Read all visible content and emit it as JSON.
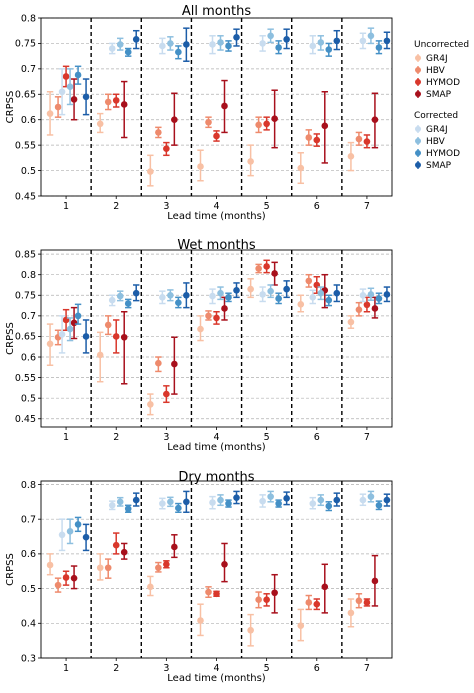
{
  "legend": {
    "group_uncorrected": "Uncorrected",
    "group_corrected": "Corrected",
    "models": [
      "GR4J",
      "HBV",
      "HYMOD",
      "SMAP"
    ],
    "colors_uncorrected": [
      "#f8c0a4",
      "#ee8a6c",
      "#d9372b",
      "#a8101c"
    ],
    "colors_corrected": [
      "#c8dcef",
      "#8dbfdf",
      "#4490c6",
      "#1c5da8"
    ]
  },
  "chart_data": [
    {
      "type": "scatter",
      "title": "All months",
      "xlabel": "Lead time (months)",
      "ylabel": "CRPSS",
      "categories": [
        "1",
        "2",
        "3",
        "4",
        "5",
        "6",
        "7"
      ],
      "ylim": [
        0.45,
        0.8
      ],
      "yticks": [
        0.45,
        0.5,
        0.55,
        0.6,
        0.65,
        0.7,
        0.75,
        0.8
      ],
      "grid": "y-dashed",
      "series": [
        {
          "name": "GR4J",
          "group": "Uncorrected",
          "values": [
            0.612,
            0.592,
            0.498,
            0.508,
            0.518,
            0.505,
            0.528
          ],
          "lower": [
            0.57,
            0.575,
            0.47,
            0.48,
            0.49,
            0.475,
            0.5
          ],
          "upper": [
            0.655,
            0.612,
            0.53,
            0.54,
            0.55,
            0.535,
            0.555
          ]
        },
        {
          "name": "HBV",
          "group": "Uncorrected",
          "values": [
            0.625,
            0.635,
            0.575,
            0.595,
            0.59,
            0.565,
            0.562
          ],
          "lower": [
            0.605,
            0.62,
            0.565,
            0.585,
            0.575,
            0.55,
            0.55
          ],
          "upper": [
            0.645,
            0.65,
            0.585,
            0.605,
            0.605,
            0.58,
            0.575
          ]
        },
        {
          "name": "HYMOD",
          "group": "Uncorrected",
          "values": [
            0.685,
            0.638,
            0.543,
            0.568,
            0.592,
            0.56,
            0.557
          ],
          "lower": [
            0.665,
            0.625,
            0.53,
            0.558,
            0.58,
            0.548,
            0.545
          ],
          "upper": [
            0.705,
            0.65,
            0.555,
            0.578,
            0.605,
            0.572,
            0.57
          ]
        },
        {
          "name": "SMAP",
          "group": "Uncorrected",
          "values": [
            0.64,
            0.63,
            0.6,
            0.627,
            0.602,
            0.588,
            0.6
          ],
          "lower": [
            0.6,
            0.565,
            0.55,
            0.575,
            0.545,
            0.515,
            0.545
          ],
          "upper": [
            0.68,
            0.675,
            0.652,
            0.677,
            0.658,
            0.655,
            0.652
          ]
        },
        {
          "name": "GR4J",
          "group": "Corrected",
          "values": [
            0.655,
            0.74,
            0.745,
            0.748,
            0.75,
            0.745,
            0.755
          ],
          "lower": [
            0.61,
            0.73,
            0.73,
            0.73,
            0.735,
            0.73,
            0.74
          ],
          "upper": [
            0.7,
            0.75,
            0.76,
            0.765,
            0.765,
            0.765,
            0.77
          ]
        },
        {
          "name": "HBV",
          "group": "Corrected",
          "values": [
            0.665,
            0.748,
            0.75,
            0.752,
            0.765,
            0.752,
            0.765
          ],
          "lower": [
            0.63,
            0.737,
            0.737,
            0.737,
            0.752,
            0.737,
            0.75
          ],
          "upper": [
            0.7,
            0.76,
            0.763,
            0.765,
            0.778,
            0.765,
            0.78
          ]
        },
        {
          "name": "HYMOD",
          "group": "Corrected",
          "values": [
            0.688,
            0.733,
            0.733,
            0.745,
            0.742,
            0.738,
            0.742
          ],
          "lower": [
            0.67,
            0.725,
            0.72,
            0.735,
            0.73,
            0.725,
            0.73
          ],
          "upper": [
            0.705,
            0.74,
            0.745,
            0.755,
            0.755,
            0.75,
            0.755
          ]
        },
        {
          "name": "SMAP",
          "group": "Corrected",
          "values": [
            0.645,
            0.758,
            0.748,
            0.762,
            0.758,
            0.755,
            0.755
          ],
          "lower": [
            0.61,
            0.74,
            0.715,
            0.745,
            0.74,
            0.738,
            0.74
          ],
          "upper": [
            0.68,
            0.775,
            0.78,
            0.778,
            0.778,
            0.775,
            0.772
          ]
        }
      ]
    },
    {
      "type": "scatter",
      "title": "Wet months",
      "xlabel": "Lead time (months)",
      "ylabel": "CRPSS",
      "categories": [
        "1",
        "2",
        "3",
        "4",
        "5",
        "6",
        "7"
      ],
      "ylim": [
        0.43,
        0.86
      ],
      "yticks": [
        0.45,
        0.5,
        0.55,
        0.6,
        0.65,
        0.7,
        0.75,
        0.8,
        0.85
      ],
      "grid": "y-dashed",
      "series": [
        {
          "name": "GR4J",
          "group": "Uncorrected",
          "values": [
            0.632,
            0.605,
            0.485,
            0.668,
            0.765,
            0.728,
            0.685
          ],
          "lower": [
            0.58,
            0.54,
            0.46,
            0.64,
            0.745,
            0.71,
            0.67
          ],
          "upper": [
            0.68,
            0.66,
            0.51,
            0.7,
            0.79,
            0.75,
            0.7
          ]
        },
        {
          "name": "HBV",
          "group": "Uncorrected",
          "values": [
            0.648,
            0.678,
            0.585,
            0.7,
            0.815,
            0.785,
            0.715
          ],
          "lower": [
            0.63,
            0.655,
            0.565,
            0.69,
            0.805,
            0.77,
            0.7
          ],
          "upper": [
            0.665,
            0.7,
            0.6,
            0.712,
            0.825,
            0.8,
            0.732
          ]
        },
        {
          "name": "HYMOD",
          "group": "Uncorrected",
          "values": [
            0.69,
            0.65,
            0.51,
            0.695,
            0.82,
            0.775,
            0.727
          ],
          "lower": [
            0.665,
            0.61,
            0.49,
            0.68,
            0.805,
            0.755,
            0.71
          ],
          "upper": [
            0.715,
            0.69,
            0.53,
            0.71,
            0.835,
            0.795,
            0.745
          ]
        },
        {
          "name": "SMAP",
          "group": "Uncorrected",
          "values": [
            0.683,
            0.648,
            0.583,
            0.718,
            0.803,
            0.762,
            0.718
          ],
          "lower": [
            0.645,
            0.535,
            0.51,
            0.69,
            0.775,
            0.72,
            0.695
          ],
          "upper": [
            0.72,
            0.71,
            0.648,
            0.745,
            0.83,
            0.8,
            0.745
          ]
        },
        {
          "name": "GR4J",
          "group": "Corrected",
          "values": [
            0.655,
            0.738,
            0.745,
            0.748,
            0.752,
            0.745,
            0.75
          ],
          "lower": [
            0.61,
            0.725,
            0.73,
            0.73,
            0.735,
            0.73,
            0.735
          ],
          "upper": [
            0.7,
            0.75,
            0.76,
            0.765,
            0.77,
            0.762,
            0.765
          ]
        },
        {
          "name": "HBV",
          "group": "Corrected",
          "values": [
            0.668,
            0.748,
            0.75,
            0.755,
            0.76,
            0.755,
            0.752
          ],
          "lower": [
            0.64,
            0.737,
            0.737,
            0.74,
            0.745,
            0.74,
            0.738
          ],
          "upper": [
            0.695,
            0.76,
            0.763,
            0.77,
            0.775,
            0.77,
            0.767
          ]
        },
        {
          "name": "HYMOD",
          "group": "Corrected",
          "values": [
            0.7,
            0.73,
            0.732,
            0.745,
            0.742,
            0.738,
            0.742
          ],
          "lower": [
            0.68,
            0.72,
            0.72,
            0.735,
            0.73,
            0.725,
            0.73
          ],
          "upper": [
            0.728,
            0.74,
            0.745,
            0.755,
            0.755,
            0.75,
            0.755
          ]
        },
        {
          "name": "SMAP",
          "group": "Corrected",
          "values": [
            0.65,
            0.755,
            0.75,
            0.762,
            0.765,
            0.755,
            0.752
          ],
          "lower": [
            0.61,
            0.737,
            0.72,
            0.745,
            0.745,
            0.735,
            0.735
          ],
          "upper": [
            0.69,
            0.775,
            0.78,
            0.78,
            0.785,
            0.775,
            0.77
          ]
        }
      ]
    },
    {
      "type": "scatter",
      "title": "Dry months",
      "xlabel": "Lead time (months)",
      "ylabel": "CRPSS",
      "categories": [
        "1",
        "2",
        "3",
        "4",
        "5",
        "6",
        "7"
      ],
      "ylim": [
        0.3,
        0.81
      ],
      "yticks": [
        0.3,
        0.4,
        0.5,
        0.6,
        0.7,
        0.8
      ],
      "grid": "y-dashed",
      "series": [
        {
          "name": "GR4J",
          "group": "Uncorrected",
          "values": [
            0.568,
            0.56,
            0.505,
            0.408,
            0.38,
            0.393,
            0.43
          ],
          "lower": [
            0.54,
            0.525,
            0.48,
            0.365,
            0.335,
            0.35,
            0.39
          ],
          "upper": [
            0.6,
            0.6,
            0.535,
            0.455,
            0.425,
            0.44,
            0.47
          ]
        },
        {
          "name": "HBV",
          "group": "Uncorrected",
          "values": [
            0.51,
            0.56,
            0.56,
            0.49,
            0.468,
            0.46,
            0.465
          ],
          "lower": [
            0.49,
            0.53,
            0.548,
            0.475,
            0.445,
            0.44,
            0.445
          ],
          "upper": [
            0.53,
            0.585,
            0.575,
            0.505,
            0.49,
            0.48,
            0.485
          ]
        },
        {
          "name": "HYMOD",
          "group": "Uncorrected",
          "values": [
            0.532,
            0.625,
            0.57,
            0.485,
            0.468,
            0.455,
            0.46
          ],
          "lower": [
            0.51,
            0.6,
            0.56,
            0.478,
            0.45,
            0.44,
            0.45
          ],
          "upper": [
            0.55,
            0.66,
            0.58,
            0.492,
            0.485,
            0.47,
            0.47
          ]
        },
        {
          "name": "SMAP",
          "group": "Uncorrected",
          "values": [
            0.53,
            0.605,
            0.62,
            0.57,
            0.488,
            0.505,
            0.522
          ],
          "lower": [
            0.5,
            0.585,
            0.59,
            0.52,
            0.43,
            0.43,
            0.45
          ],
          "upper": [
            0.565,
            0.63,
            0.655,
            0.63,
            0.54,
            0.57,
            0.595
          ]
        },
        {
          "name": "GR4J",
          "group": "Corrected",
          "values": [
            0.655,
            0.74,
            0.745,
            0.748,
            0.752,
            0.745,
            0.755
          ],
          "lower": [
            0.61,
            0.728,
            0.73,
            0.73,
            0.735,
            0.73,
            0.74
          ],
          "upper": [
            0.7,
            0.752,
            0.76,
            0.765,
            0.77,
            0.762,
            0.772
          ]
        },
        {
          "name": "HBV",
          "group": "Corrected",
          "values": [
            0.665,
            0.75,
            0.75,
            0.755,
            0.765,
            0.755,
            0.765
          ],
          "lower": [
            0.63,
            0.738,
            0.737,
            0.74,
            0.75,
            0.74,
            0.75
          ],
          "upper": [
            0.7,
            0.762,
            0.763,
            0.77,
            0.78,
            0.77,
            0.78
          ]
        },
        {
          "name": "HYMOD",
          "group": "Corrected",
          "values": [
            0.685,
            0.73,
            0.732,
            0.745,
            0.745,
            0.738,
            0.74
          ],
          "lower": [
            0.665,
            0.72,
            0.72,
            0.735,
            0.735,
            0.725,
            0.728
          ],
          "upper": [
            0.705,
            0.74,
            0.745,
            0.755,
            0.755,
            0.75,
            0.752
          ]
        },
        {
          "name": "SMAP",
          "group": "Corrected",
          "values": [
            0.648,
            0.755,
            0.75,
            0.762,
            0.76,
            0.755,
            0.755
          ],
          "lower": [
            0.61,
            0.738,
            0.72,
            0.745,
            0.742,
            0.738,
            0.738
          ],
          "upper": [
            0.685,
            0.775,
            0.78,
            0.78,
            0.778,
            0.775,
            0.772
          ]
        }
      ]
    }
  ]
}
